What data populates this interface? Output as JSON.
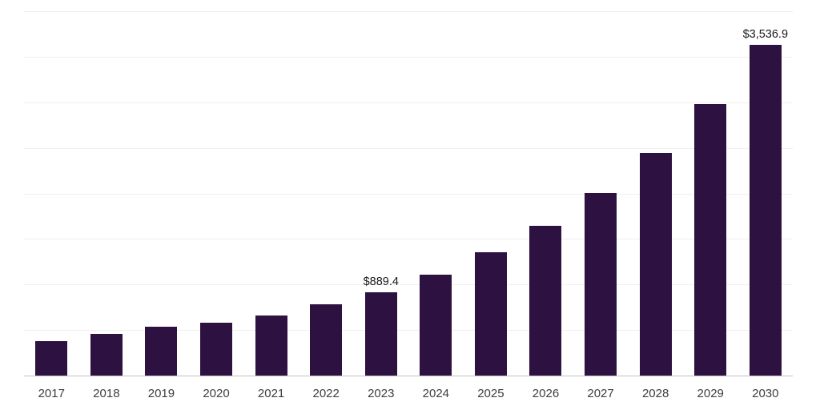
{
  "chart_data": {
    "type": "bar",
    "title": "",
    "xlabel": "",
    "ylabel": "",
    "categories": [
      "2017",
      "2018",
      "2019",
      "2020",
      "2021",
      "2022",
      "2023",
      "2024",
      "2025",
      "2026",
      "2027",
      "2028",
      "2029",
      "2030"
    ],
    "values": [
      370,
      445,
      520,
      565,
      640,
      760,
      889.4,
      1083.3,
      1319.4,
      1607.0,
      1957.3,
      2384.0,
      2903.7,
      3536.9
    ],
    "data_labels": [
      "",
      "",
      "",
      "",
      "",
      "",
      "$889.4",
      "",
      "",
      "",
      "",
      "",
      "",
      "$3,536.9"
    ],
    "ylim": [
      0,
      3900
    ],
    "grid": true,
    "gridline_intervals": 8,
    "legend_position": "none",
    "bar_color": "#2d1141",
    "gridline_color": "#efefef",
    "axis_line_color": "#c4c4c4",
    "label_color": "#1a1a1a",
    "tick_label_color": "#3d3d3d"
  }
}
